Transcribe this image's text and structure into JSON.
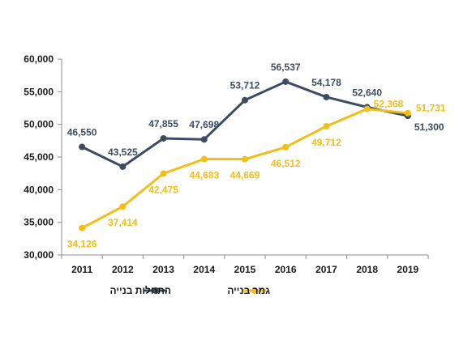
{
  "chart_data": {
    "type": "line",
    "title": "",
    "xlabel": "",
    "ylabel": "",
    "categories": [
      "2011",
      "2012",
      "2013",
      "2014",
      "2015",
      "2016",
      "2017",
      "2018",
      "2019"
    ],
    "ylim": [
      30000,
      60000
    ],
    "y_ticks": [
      30000,
      35000,
      40000,
      45000,
      50000,
      55000,
      60000
    ],
    "y_tick_labels": [
      "30,000",
      "35,000",
      "40,000",
      "45,000",
      "50,000",
      "55,000",
      "60,000"
    ],
    "grid": false,
    "legend_position": "bottom",
    "series": [
      {
        "name": "התחלות בנייה",
        "color": "#3d4d5f",
        "values": [
          46550,
          43525,
          47855,
          47698,
          53712,
          56537,
          54178,
          52640,
          51300
        ],
        "labels": [
          "46,550",
          "43,525",
          "47,855",
          "47,698",
          "53,712",
          "56,537",
          "54,178",
          "52,640",
          "51,300"
        ],
        "label_position": [
          "above",
          "above",
          "above",
          "above",
          "above",
          "above",
          "above",
          "above",
          "below-right"
        ]
      },
      {
        "name": "גמר בנייה",
        "color": "#f2be1a",
        "values": [
          34126,
          37414,
          42475,
          44683,
          44669,
          46512,
          49712,
          52368,
          51731
        ],
        "labels": [
          "34,126",
          "37,414",
          "42,475",
          "44,683",
          "44,669",
          "46,512",
          "49,712",
          "52,368",
          "51,731"
        ],
        "label_position": [
          "below",
          "below",
          "below",
          "below",
          "below",
          "below",
          "below",
          "above-right",
          "right"
        ]
      }
    ]
  }
}
